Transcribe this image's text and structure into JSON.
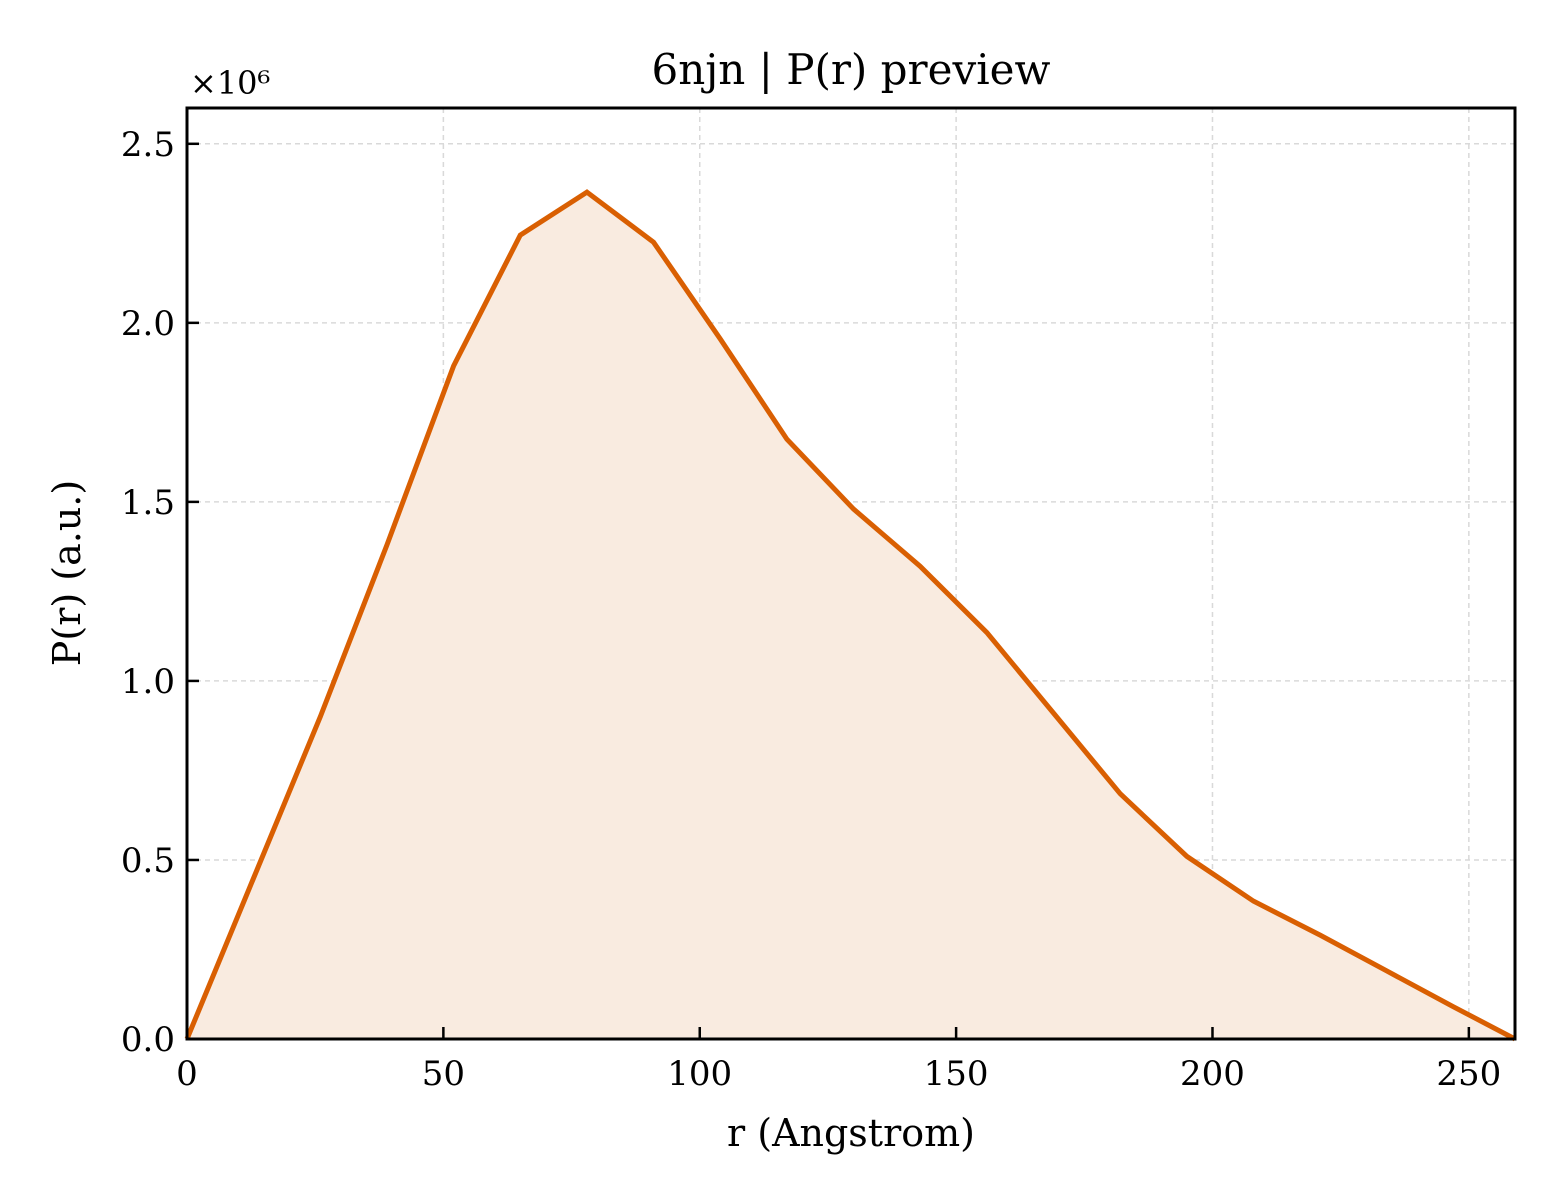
{
  "chart_data": {
    "type": "area",
    "title": "6njn | P(r) preview",
    "xlabel": "r (Angstrom)",
    "ylabel": "P(r) (a.u.)",
    "y_offset_label": "×10⁶",
    "xlim": [
      0,
      259
    ],
    "ylim": [
      0,
      2.6
    ],
    "y_scale": 1000000,
    "xticks": [
      0,
      50,
      100,
      150,
      200,
      250
    ],
    "yticks": [
      0.0,
      0.5,
      1.0,
      1.5,
      2.0,
      2.5
    ],
    "xtick_labels": [
      "0",
      "50",
      "100",
      "150",
      "200",
      "250"
    ],
    "ytick_labels": [
      "0.0",
      "0.5",
      "1.0",
      "1.5",
      "2.0",
      "2.5"
    ],
    "grid": true,
    "series": [
      {
        "line_color": "#d95f02",
        "fill_color": "#f9ebe0",
        "x": [
          0,
          13,
          26,
          39,
          52,
          65,
          78,
          91,
          104,
          117,
          130,
          143,
          156,
          169,
          182,
          195,
          208,
          221,
          234,
          247,
          259
        ],
        "y": [
          0.0,
          0.45,
          0.9,
          1.38,
          1.88,
          2.245,
          2.365,
          2.225,
          1.955,
          1.675,
          1.48,
          1.32,
          1.135,
          0.91,
          0.685,
          0.51,
          0.385,
          0.29,
          0.19,
          0.09,
          0.0
        ]
      }
    ]
  }
}
